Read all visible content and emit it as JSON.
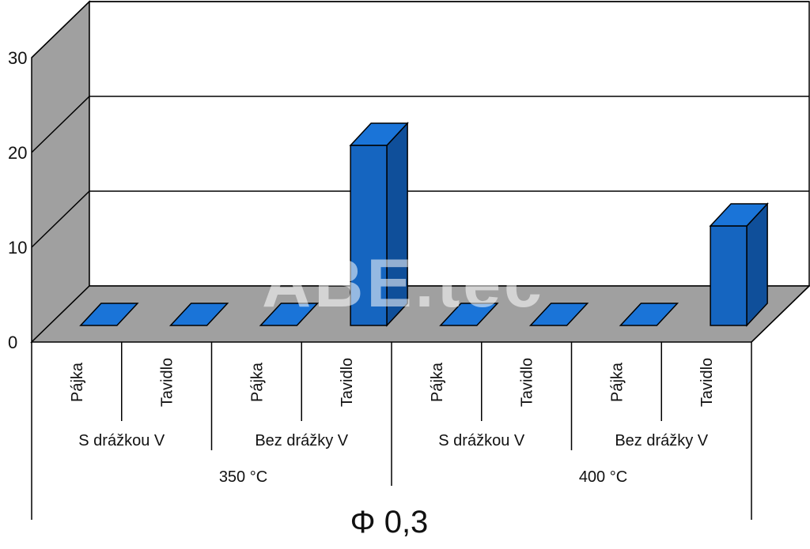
{
  "chart_data": {
    "type": "bar",
    "title": "Φ 0,3",
    "ylim": [
      0,
      30
    ],
    "yticks": [
      "0",
      "10",
      "20",
      "30"
    ],
    "categories": [
      "Pájka",
      "Tavidlo",
      "Pájka",
      "Tavidlo",
      "Pájka",
      "Tavidlo",
      "Pájka",
      "Tavidlo"
    ],
    "values": [
      0,
      0,
      0,
      19,
      0,
      0,
      0,
      10.5
    ],
    "groups_level2": [
      "S drážkou V",
      "Bez drážky V",
      "S drážkou V",
      "Bez drážky V"
    ],
    "groups_level1": [
      "350 °C",
      "400 °C"
    ],
    "grid": true,
    "style": "3d",
    "bar_color": "#1565c0"
  },
  "watermark": "ABE.tec"
}
